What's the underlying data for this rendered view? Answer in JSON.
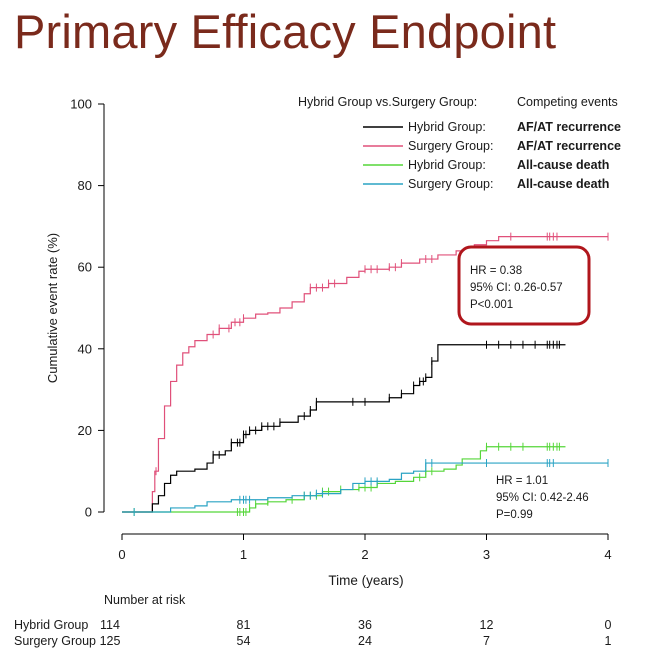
{
  "slide_title": "Primary Efficacy Endpoint",
  "chart_data": {
    "type": "line",
    "subtype": "cumulative-incidence-step",
    "xlabel": "Time (years)",
    "ylabel": "Cumulative event rate (%)",
    "xlim": [
      0,
      4.1
    ],
    "ylim": [
      0,
      100
    ],
    "x_ticks": [
      "0",
      "1",
      "2",
      "3",
      "4"
    ],
    "y_ticks": [
      "0",
      "20",
      "40",
      "60",
      "80",
      "100"
    ],
    "grid": false,
    "legend": {
      "placement": "top-right",
      "header_left": "Hybrid Group vs.Surgery Group:",
      "header_right": "Competing events",
      "entries": [
        {
          "group": "Hybrid Group:",
          "event": "AF/AT recurrence",
          "color": "#000000"
        },
        {
          "group": "Surgery Group:",
          "event": "AF/AT recurrence",
          "color": "#e0507a"
        },
        {
          "group": "Hybrid Group:",
          "event": "All-cause death",
          "color": "#55d639"
        },
        {
          "group": "Surgery Group:",
          "event": "All-cause death",
          "color": "#2aa3c4"
        }
      ]
    },
    "series": [
      {
        "color": "#e0507a",
        "points": [
          [
            0,
            0
          ],
          [
            0.22,
            0
          ],
          [
            0.25,
            5
          ],
          [
            0.27,
            10
          ],
          [
            0.3,
            18
          ],
          [
            0.35,
            26
          ],
          [
            0.4,
            32
          ],
          [
            0.45,
            36
          ],
          [
            0.5,
            39
          ],
          [
            0.55,
            40.5
          ],
          [
            0.6,
            42
          ],
          [
            0.7,
            43.5
          ],
          [
            0.8,
            45
          ],
          [
            0.9,
            46.5
          ],
          [
            1.0,
            47.5
          ],
          [
            1.1,
            48.5
          ],
          [
            1.2,
            48.8
          ],
          [
            1.3,
            50
          ],
          [
            1.4,
            51.5
          ],
          [
            1.5,
            53.5
          ],
          [
            1.55,
            55
          ],
          [
            1.7,
            56
          ],
          [
            1.85,
            57.5
          ],
          [
            1.95,
            59
          ],
          [
            2.0,
            59.5
          ],
          [
            2.2,
            60
          ],
          [
            2.3,
            61
          ],
          [
            2.45,
            62
          ],
          [
            2.6,
            63
          ],
          [
            2.75,
            64
          ],
          [
            2.9,
            65.5
          ],
          [
            3.0,
            66.5
          ],
          [
            3.1,
            67.5
          ],
          [
            4.0,
            67.5
          ]
        ],
        "censor": [
          0.28,
          0.75,
          0.8,
          0.88,
          0.93,
          0.97,
          1.0,
          1.55,
          1.6,
          1.65,
          1.7,
          1.75,
          2.0,
          2.05,
          2.1,
          2.2,
          2.25,
          2.3,
          2.5,
          2.55,
          3.2,
          3.5,
          3.52,
          3.55,
          3.58,
          4.0
        ]
      },
      {
        "color": "#000000",
        "points": [
          [
            0,
            0
          ],
          [
            0.22,
            0
          ],
          [
            0.25,
            2
          ],
          [
            0.3,
            4
          ],
          [
            0.35,
            7
          ],
          [
            0.4,
            9
          ],
          [
            0.45,
            10
          ],
          [
            0.6,
            10.5
          ],
          [
            0.7,
            12
          ],
          [
            0.75,
            14
          ],
          [
            0.85,
            15
          ],
          [
            0.9,
            17
          ],
          [
            1.0,
            19
          ],
          [
            1.05,
            20
          ],
          [
            1.15,
            21
          ],
          [
            1.3,
            22
          ],
          [
            1.45,
            23.5
          ],
          [
            1.55,
            25
          ],
          [
            1.6,
            27
          ],
          [
            1.9,
            27
          ],
          [
            2.0,
            27
          ],
          [
            2.2,
            28
          ],
          [
            2.3,
            29
          ],
          [
            2.4,
            31
          ],
          [
            2.45,
            32
          ],
          [
            2.5,
            33
          ],
          [
            2.55,
            37
          ],
          [
            2.6,
            41
          ],
          [
            3.0,
            41
          ],
          [
            3.65,
            41
          ]
        ],
        "censor": [
          0.75,
          0.8,
          0.9,
          0.95,
          0.97,
          1.0,
          1.02,
          1.05,
          1.1,
          1.15,
          1.2,
          1.25,
          1.3,
          1.5,
          1.55,
          1.6,
          1.9,
          2.0,
          2.2,
          2.3,
          2.4,
          2.45,
          2.48,
          2.5,
          2.55,
          3.0,
          3.1,
          3.2,
          3.3,
          3.4,
          3.5,
          3.52,
          3.55,
          3.58,
          3.6
        ]
      },
      {
        "color": "#55d639",
        "points": [
          [
            0,
            0
          ],
          [
            1.0,
            0
          ],
          [
            1.05,
            1
          ],
          [
            1.1,
            2
          ],
          [
            1.2,
            2.5
          ],
          [
            1.35,
            3
          ],
          [
            1.5,
            4
          ],
          [
            1.65,
            5
          ],
          [
            1.8,
            5.5
          ],
          [
            1.95,
            6
          ],
          [
            2.1,
            7
          ],
          [
            2.25,
            7.5
          ],
          [
            2.4,
            8.5
          ],
          [
            2.5,
            10
          ],
          [
            2.65,
            10.5
          ],
          [
            2.75,
            11.5
          ],
          [
            2.8,
            13
          ],
          [
            2.95,
            15
          ],
          [
            3.0,
            16
          ],
          [
            3.65,
            16
          ]
        ],
        "censor": [
          0.1,
          0.95,
          0.97,
          1.0,
          1.02,
          1.05,
          1.1,
          1.2,
          1.4,
          1.5,
          1.55,
          1.6,
          1.65,
          1.7,
          1.8,
          1.95,
          2.0,
          2.05,
          2.1,
          2.45,
          2.5,
          2.55,
          3.0,
          3.1,
          3.2,
          3.3,
          3.5,
          3.52,
          3.55,
          3.58,
          3.6
        ]
      },
      {
        "color": "#2aa3c4",
        "points": [
          [
            0,
            0
          ],
          [
            0.35,
            0
          ],
          [
            0.4,
            1
          ],
          [
            0.6,
            1.5
          ],
          [
            0.7,
            2.5
          ],
          [
            0.9,
            3
          ],
          [
            1.0,
            3
          ],
          [
            1.2,
            3.5
          ],
          [
            1.4,
            4
          ],
          [
            1.6,
            4.5
          ],
          [
            1.8,
            5.5
          ],
          [
            1.9,
            7
          ],
          [
            2.0,
            7.5
          ],
          [
            2.2,
            8
          ],
          [
            2.3,
            9.5
          ],
          [
            2.4,
            10
          ],
          [
            2.5,
            12
          ],
          [
            4.0,
            12
          ]
        ],
        "censor": [
          0.1,
          0.97,
          1.0,
          1.02,
          1.05,
          1.5,
          1.55,
          1.6,
          1.65,
          2.0,
          2.05,
          2.1,
          2.5,
          2.55,
          3.0,
          3.5,
          3.52,
          3.55,
          4.0
        ]
      }
    ],
    "annotations": {
      "box1": [
        "HR = 0.38",
        "95% CI: 0.26-0.57",
        "P<0.001"
      ],
      "box2": [
        "HR = 1.01",
        "95% CI: 0.42-2.46",
        "P=0.99"
      ]
    },
    "risk_table": {
      "header": "Number at risk",
      "rows": [
        {
          "label": "Hybrid Group",
          "values": [
            "114",
            "81",
            "36",
            "12",
            "0"
          ]
        },
        {
          "label": "Surgery Group",
          "values": [
            "125",
            "54",
            "24",
            "7",
            "1"
          ]
        }
      ]
    }
  }
}
